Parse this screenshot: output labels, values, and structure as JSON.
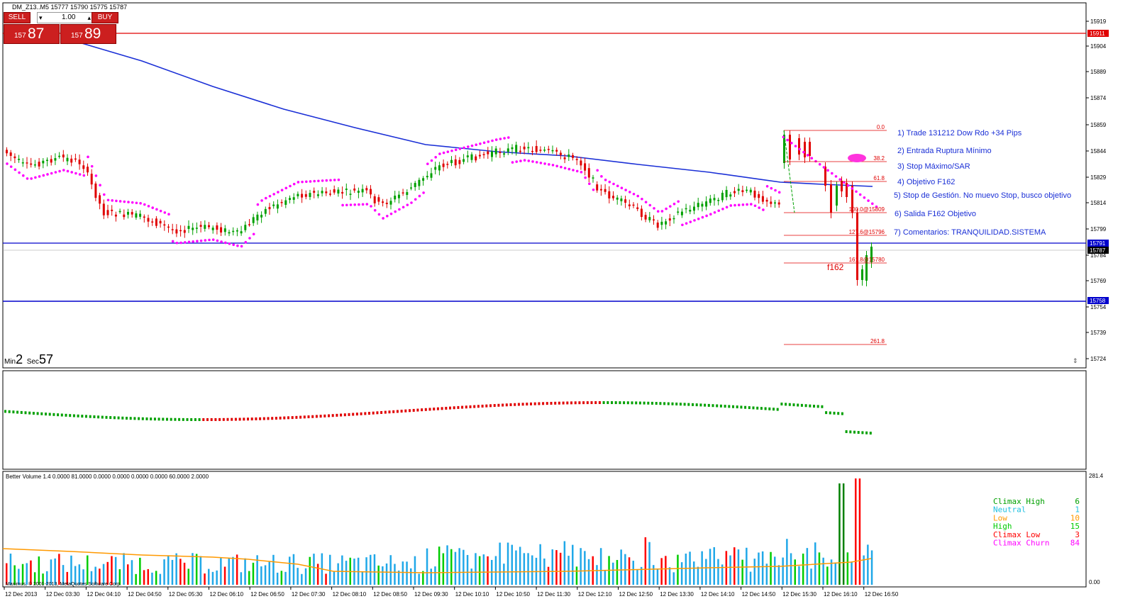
{
  "window": {
    "header": "DM_Z13..M5  15777 15790 15775 15787"
  },
  "trade_panel": {
    "sell_label": "SELL",
    "buy_label": "BUY",
    "lot_value": "1.00",
    "sell_price_small": "157",
    "sell_price_big": "87",
    "buy_price_small": "157",
    "buy_price_big": "89"
  },
  "timer": {
    "min_label": "Min",
    "min_value": "2",
    "sec_label": "Sec",
    "sec_value": "57"
  },
  "price_axis": {
    "ticks": [
      "15919",
      "15904",
      "15889",
      "15874",
      "15859",
      "15844",
      "15829",
      "15814",
      "15799",
      "15784",
      "15769",
      "15754",
      "15739",
      "15724"
    ],
    "markers": [
      {
        "label": "15911",
        "color": "#e00000"
      },
      {
        "label": "15791",
        "color": "#0000cc"
      },
      {
        "label": "15787",
        "color": "#000000"
      },
      {
        "label": "15758",
        "color": "#0000cc"
      }
    ]
  },
  "fibo_labels": [
    "0.0",
    "38.2",
    "61.8",
    "100.0@15809",
    "127.6@15796",
    "161.8@15780",
    "261.8"
  ],
  "f162_label": "f162",
  "notes": [
    "1) Trade 131212 Dow Rdo +34 Pips",
    "2) Entrada Ruptura Mínimo",
    "3) Stop Máximo/SAR",
    "4) Objetivo F162",
    "5) Stop de Gestión. No muevo Stop, busco objetivo",
    "6) Salida F162 Objetivo",
    "7) Comentarios: TRANQUILIDAD.SISTEMA"
  ],
  "volume_panel": {
    "header": "Better Volume 1.4 0.0000 81.0000 0.0000 0.0000 0.0000 0.0000 60.0000 2.0000",
    "axis_top": "281.4",
    "axis_bottom": "0.00",
    "copyright": "Maximus, © 2001-2013, MetaQuotes Software Corp.",
    "legend": [
      {
        "label": "Climax High",
        "value": "6",
        "color": "#00a000"
      },
      {
        "label": "Neutral",
        "value": "1",
        "color": "#20c0e0"
      },
      {
        "label": "Low",
        "value": "10",
        "color": "#ff9900"
      },
      {
        "label": "High",
        "value": "15",
        "color": "#00cc00"
      },
      {
        "label": "Climax Low",
        "value": "3",
        "color": "#ff0000"
      },
      {
        "label": "Climax Churn",
        "value": "84",
        "color": "#ff00ff"
      }
    ]
  },
  "time_axis": [
    "12 Dec 2013",
    "12 Dec 03:30",
    "12 Dec 04:10",
    "12 Dec 04:50",
    "12 Dec 05:30",
    "12 Dec 06:10",
    "12 Dec 06:50",
    "12 Dec 07:30",
    "12 Dec 08:10",
    "12 Dec 08:50",
    "12 Dec 09:30",
    "12 Dec 10:10",
    "12 Dec 10:50",
    "12 Dec 11:30",
    "12 Dec 12:10",
    "12 Dec 12:50",
    "12 Dec 13:30",
    "12 Dec 14:10",
    "12 Dec 14:50",
    "12 Dec 15:30",
    "12 Dec 16:10",
    "12 Dec 16:50"
  ],
  "colors": {
    "bull": "#00a000",
    "bear": "#e00000",
    "sar": "#ff00ff",
    "ma": "#1a2fd6",
    "fibo": "#e00000"
  }
}
